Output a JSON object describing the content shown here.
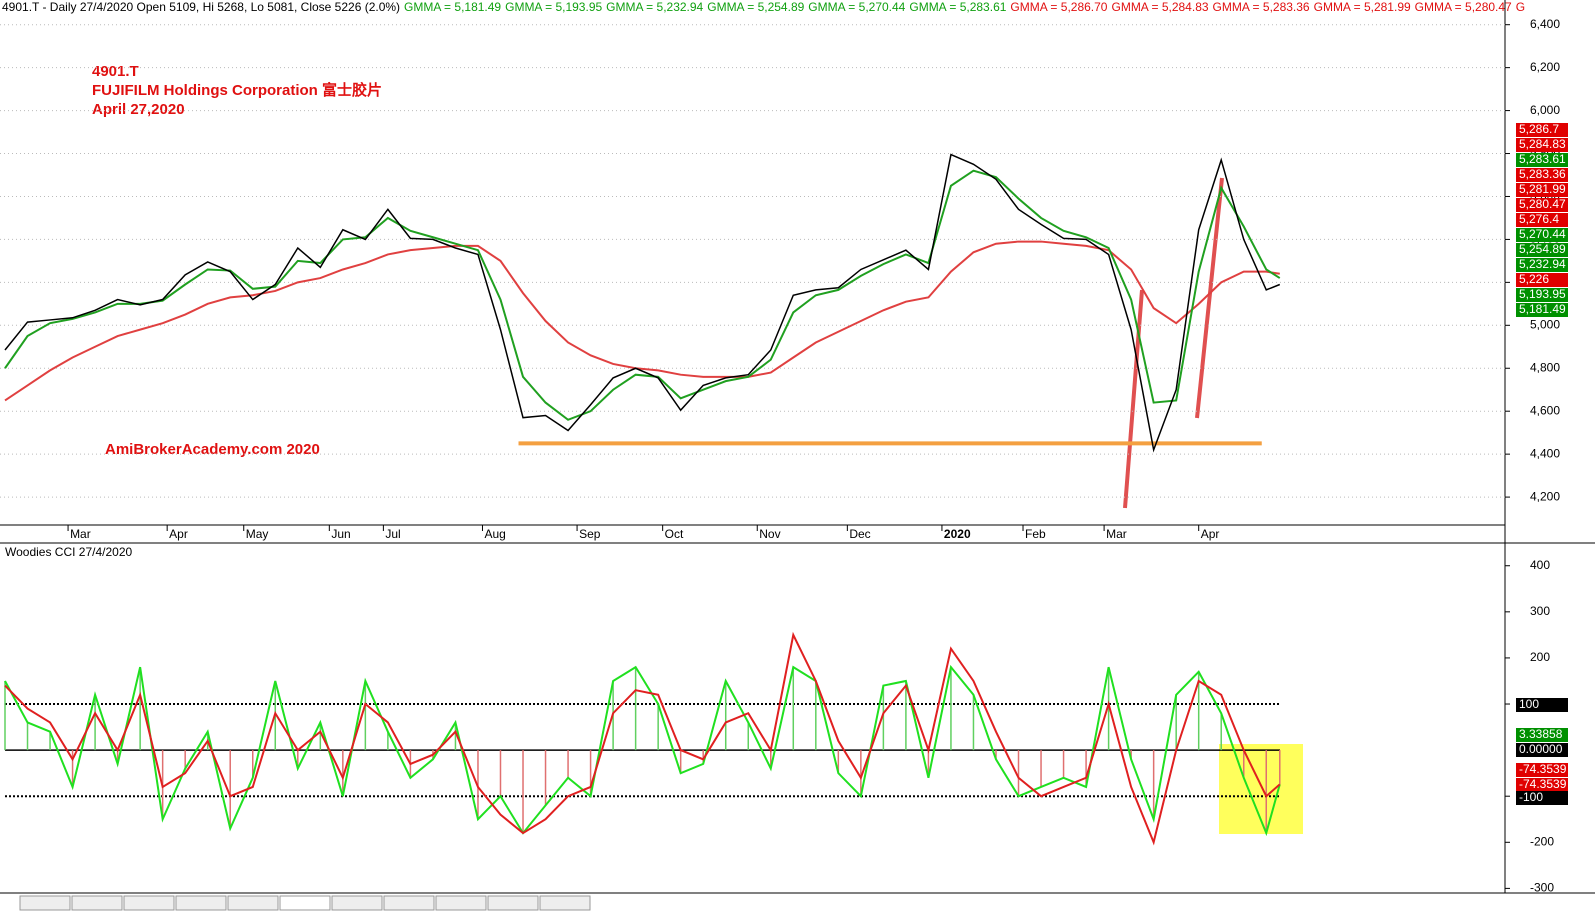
{
  "header": {
    "text": "4901.T - Daily 27/4/2020 Open 5109, Hi 5268, Lo 5081, Close 5226 (2.0%)",
    "gmma": [
      {
        "label": "GMMA = 5,181.49",
        "color": "#10a010"
      },
      {
        "label": "GMMA = 5,193.95",
        "color": "#10a010"
      },
      {
        "label": "GMMA = 5,232.94",
        "color": "#10a010"
      },
      {
        "label": "GMMA = 5,254.89",
        "color": "#10a010"
      },
      {
        "label": "GMMA = 5,270.44",
        "color": "#10a010"
      },
      {
        "label": "GMMA = 5,283.61",
        "color": "#10a010"
      },
      {
        "label": "GMMA = 5,286.70",
        "color": "#e01010"
      },
      {
        "label": "GMMA = 5,284.83",
        "color": "#e01010"
      },
      {
        "label": "GMMA = 5,283.36",
        "color": "#e01010"
      },
      {
        "label": "GMMA = 5,281.99",
        "color": "#e01010"
      },
      {
        "label": "GMMA = 5,280.47",
        "color": "#e01010"
      },
      {
        "label": "G",
        "color": "#e01010"
      }
    ]
  },
  "annotations": [
    "4901.T",
    "FUJIFILM Holdings Corporation 富士胶片",
    "April 27,2020",
    "AmiBrokerAcademy.com  2020"
  ],
  "cci_title": "Woodies CCI  27/4/2020",
  "price_labels": [
    {
      "label": "5,286.7",
      "color": "#e00000"
    },
    {
      "label": "5,284.83",
      "color": "#e00000"
    },
    {
      "label": "5,283.61",
      "color": "#009000"
    },
    {
      "label": "5,283.36",
      "color": "#e00000"
    },
    {
      "label": "5,281.99",
      "color": "#e00000"
    },
    {
      "label": "5,280.47",
      "color": "#e00000"
    },
    {
      "label": "5,276.4",
      "color": "#e00000"
    },
    {
      "label": "5,270.44",
      "color": "#009000"
    },
    {
      "label": "5,254.89",
      "color": "#009000"
    },
    {
      "label": "5,232.94",
      "color": "#009000"
    },
    {
      "label": "5,226",
      "color": "#e00000"
    },
    {
      "label": "5,193.95",
      "color": "#009000"
    },
    {
      "label": "5,181.49",
      "color": "#009000"
    }
  ],
  "cci_labels": [
    {
      "label": "100",
      "color": "#000000"
    },
    {
      "label": "3.33858",
      "color": "#009000"
    },
    {
      "label": "0.00000",
      "color": "#000000"
    },
    {
      "label": "-74.3539",
      "color": "#e00000"
    },
    {
      "label": "-74.3539",
      "color": "#e00000"
    },
    {
      "label": "-100",
      "color": "#000000"
    }
  ],
  "chart_data": [
    {
      "type": "line",
      "x": [
        0,
        5,
        10,
        15,
        20,
        25,
        30,
        35,
        40,
        45,
        50,
        55,
        60,
        65,
        70,
        75,
        80,
        85,
        90,
        95,
        100,
        105,
        110,
        115,
        120,
        125,
        130,
        135,
        140,
        145,
        150,
        155,
        160,
        165,
        170,
        175,
        180,
        185,
        190,
        195,
        200,
        205,
        210,
        215,
        220,
        225,
        230,
        235,
        240,
        245,
        250,
        255,
        260,
        265,
        270,
        275,
        280,
        283
      ],
      "xlim": [
        0,
        333
      ],
      "xticks": [
        {
          "value": 14,
          "label": "Mar"
        },
        {
          "value": 36,
          "label": "Apr"
        },
        {
          "value": 53,
          "label": "May"
        },
        {
          "value": 72,
          "label": "Jun"
        },
        {
          "value": 84,
          "label": "Jul"
        },
        {
          "value": 106,
          "label": "Aug"
        },
        {
          "value": 127,
          "label": "Sep"
        },
        {
          "value": 146,
          "label": "Oct"
        },
        {
          "value": 167,
          "label": "Nov"
        },
        {
          "value": 187,
          "label": "Dec"
        },
        {
          "value": 208,
          "label": "2020"
        },
        {
          "value": 226,
          "label": "Feb"
        },
        {
          "value": 244,
          "label": "Mar"
        },
        {
          "value": 265,
          "label": "Apr"
        }
      ],
      "ylim": [
        4070,
        6515
      ],
      "yticks": [
        {
          "value": 4200,
          "label": "4,200"
        },
        {
          "value": 4400,
          "label": "4,400"
        },
        {
          "value": 4600,
          "label": "4,600"
        },
        {
          "value": 4800,
          "label": "4,800"
        },
        {
          "value": 5000,
          "label": "5,000"
        },
        {
          "value": 5200,
          "label": "5,200"
        },
        {
          "value": 5400,
          "label": "5,400"
        },
        {
          "value": 5600,
          "label": "5,600"
        },
        {
          "value": 5800,
          "label": "5,800"
        },
        {
          "value": 6000,
          "label": "6,000"
        },
        {
          "value": 6200,
          "label": "6,200"
        },
        {
          "value": 6400,
          "label": "6,400"
        }
      ],
      "grid": true,
      "series": [
        {
          "color": "#e04040",
          "values": [
            4650,
            4720,
            4790,
            4850,
            4900,
            4950,
            4980,
            5010,
            5050,
            5100,
            5130,
            5140,
            5160,
            5200,
            5220,
            5260,
            5290,
            5330,
            5350,
            5360,
            5370,
            5370,
            5300,
            5150,
            5020,
            4920,
            4860,
            4820,
            4800,
            4790,
            4770,
            4760,
            4760,
            4760,
            4780,
            4850,
            4920,
            4970,
            5020,
            5070,
            5110,
            5130,
            5250,
            5340,
            5380,
            5390,
            5390,
            5380,
            5370,
            5350,
            5260,
            5080,
            5010,
            5100,
            5200,
            5250,
            5250,
            5240
          ]
        },
        {
          "color": "#20a020",
          "values": [
            4800,
            4950,
            5010,
            5030,
            5060,
            5100,
            5100,
            5115,
            5190,
            5260,
            5255,
            5170,
            5180,
            5300,
            5290,
            5400,
            5410,
            5500,
            5440,
            5410,
            5380,
            5350,
            5120,
            4760,
            4640,
            4560,
            4600,
            4700,
            4770,
            4760,
            4660,
            4700,
            4740,
            4760,
            4840,
            5060,
            5140,
            5165,
            5230,
            5285,
            5330,
            5290,
            5650,
            5720,
            5690,
            5590,
            5500,
            5440,
            5410,
            5360,
            5120,
            4640,
            4650,
            5250,
            5640,
            5460,
            5260,
            5220
          ]
        },
        {
          "color": "#000000",
          "values": [
            4885,
            5015,
            5025,
            5035,
            5070,
            5120,
            5095,
            5120,
            5235,
            5295,
            5250,
            5120,
            5190,
            5360,
            5270,
            5445,
            5400,
            5540,
            5405,
            5400,
            5360,
            5330,
            4980,
            4570,
            4580,
            4510,
            4630,
            4755,
            4800,
            4755,
            4605,
            4720,
            4755,
            4770,
            4885,
            5140,
            5165,
            5175,
            5260,
            5305,
            5350,
            5260,
            5795,
            5750,
            5680,
            5540,
            5470,
            5405,
            5400,
            5330,
            4980,
            4420,
            4700,
            5445,
            5770,
            5400,
            5165,
            5190
          ]
        }
      ],
      "hline": {
        "value": 4450,
        "from": 114,
        "to": 279,
        "color": "#f4a041"
      }
    },
    {
      "type": "line",
      "x": [
        0,
        5,
        10,
        15,
        20,
        25,
        30,
        35,
        40,
        45,
        50,
        55,
        60,
        65,
        70,
        75,
        80,
        85,
        90,
        95,
        100,
        105,
        110,
        115,
        120,
        125,
        130,
        135,
        140,
        145,
        150,
        155,
        160,
        165,
        170,
        175,
        180,
        185,
        190,
        195,
        200,
        205,
        210,
        215,
        220,
        225,
        230,
        235,
        240,
        245,
        250,
        255,
        260,
        265,
        270,
        275,
        280,
        283
      ],
      "xlim": [
        0,
        333
      ],
      "ylim": [
        -310,
        445
      ],
      "yticks": [
        -300,
        -200,
        -100,
        100,
        200,
        300,
        400
      ],
      "hlines": [
        100,
        -100
      ],
      "zero_line": 0,
      "bars": true,
      "series": [
        {
          "color": "#20e020",
          "values": [
            150,
            60,
            40,
            -80,
            120,
            -30,
            180,
            -150,
            -40,
            40,
            -170,
            -60,
            150,
            -40,
            60,
            -100,
            150,
            40,
            -60,
            -20,
            60,
            -150,
            -100,
            -180,
            -120,
            -60,
            -100,
            150,
            180,
            100,
            -50,
            -30,
            150,
            60,
            -40,
            180,
            150,
            -50,
            -100,
            140,
            150,
            -60,
            180,
            120,
            -20,
            -100,
            -80,
            -60,
            -80,
            180,
            -20,
            -150,
            120,
            170,
            80,
            -60,
            -180,
            -74.35
          ]
        },
        {
          "color": "#e02020",
          "values": [
            140,
            90,
            60,
            -20,
            80,
            0,
            120,
            -80,
            -50,
            20,
            -100,
            -80,
            80,
            0,
            40,
            -60,
            100,
            60,
            -30,
            -10,
            40,
            -80,
            -140,
            -180,
            -150,
            -100,
            -80,
            80,
            130,
            120,
            0,
            -20,
            60,
            80,
            0,
            250,
            150,
            20,
            -60,
            80,
            140,
            0,
            220,
            150,
            40,
            -60,
            -100,
            -80,
            -60,
            100,
            -80,
            -200,
            0,
            150,
            120,
            0,
            -100,
            -74.35
          ]
        }
      ]
    }
  ]
}
